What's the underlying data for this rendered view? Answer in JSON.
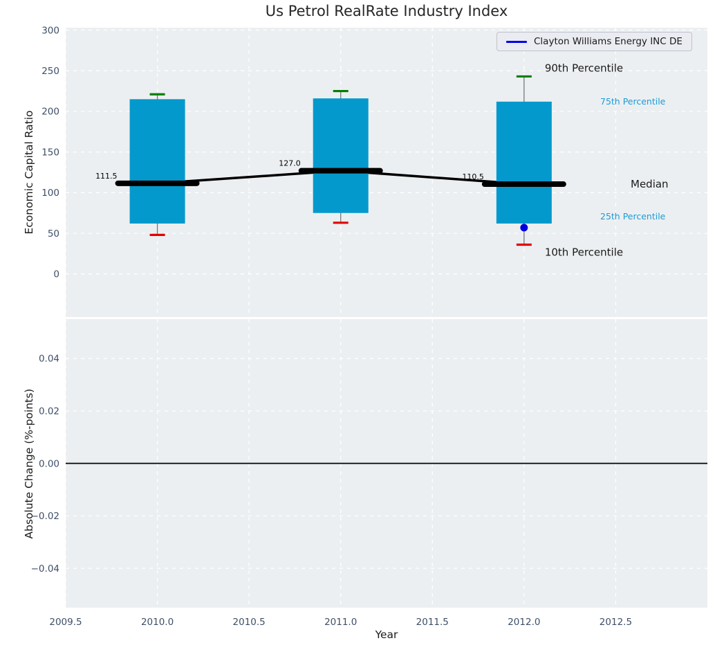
{
  "figure": {
    "title": "Us Petrol RealRate Industry Index",
    "xlabel": "Year",
    "background": "#ffffff",
    "axes_background": "#eceff1",
    "grid_color": "#ffffff",
    "tick_color": "#3e4f66",
    "text_color": "#1a1a1a"
  },
  "legend": {
    "label": "Clayton Williams Energy INC DE",
    "line_color": "#0000ec"
  },
  "chart_data": [
    {
      "type": "boxplot",
      "title": "Us Petrol RealRate Industry Index",
      "ylabel": "Economic Capital Ratio",
      "xlim": [
        2009.5,
        2013.0
      ],
      "ylim": [
        -53,
        303
      ],
      "grid": true,
      "legend_position": "upper right",
      "box_color": "#0499cd",
      "whisker_color": "#777777",
      "cap90_color": "#008000",
      "cap10_color": "#e30000",
      "median_color": "#000000",
      "point_color": "#0000dd",
      "annotation_minor_color": "#1b9cd8",
      "yticks": [
        {
          "v": 0,
          "label": "0"
        },
        {
          "v": 50,
          "label": "50"
        },
        {
          "v": 100,
          "label": "100"
        },
        {
          "v": 150,
          "label": "150"
        },
        {
          "v": 200,
          "label": "200"
        },
        {
          "v": 250,
          "label": "250"
        },
        {
          "v": 300,
          "label": "300"
        }
      ],
      "boxes": [
        {
          "x": 2010.0,
          "p10": 48,
          "p25": 62,
          "median": 111.5,
          "p75": 215,
          "p90": 221,
          "median_label": "111.5"
        },
        {
          "x": 2011.0,
          "p10": 63,
          "p25": 75,
          "median": 127.0,
          "p75": 216,
          "p90": 225,
          "median_label": "127.0"
        },
        {
          "x": 2012.0,
          "p10": 36,
          "p25": 62,
          "median": 110.5,
          "p75": 212,
          "p90": 243,
          "median_label": "110.5"
        }
      ],
      "series": [
        {
          "name": "Clayton Williams Energy INC DE",
          "color": "#0000dd",
          "points": [
            {
              "x": 2012.0,
              "y": 57
            }
          ]
        }
      ],
      "annotations": [
        {
          "text": "90th Percentile",
          "style": "major",
          "anchor": "p90"
        },
        {
          "text": "75th Percentile",
          "style": "minor",
          "anchor": "p75"
        },
        {
          "text": "Median",
          "style": "major",
          "anchor": "median"
        },
        {
          "text": "25th Percentile",
          "style": "minor",
          "anchor": "p25"
        },
        {
          "text": "10th Percentile",
          "style": "major",
          "anchor": "p10"
        }
      ]
    },
    {
      "type": "line",
      "ylabel": "Absolute Change (%-points)",
      "xlabel": "Year",
      "xlim": [
        2009.5,
        2013.0
      ],
      "ylim": [
        -0.055,
        0.055
      ],
      "grid": true,
      "zero_line": 0.0,
      "yticks": [
        {
          "v": 0.04,
          "label": "0.04"
        },
        {
          "v": 0.02,
          "label": "0.02"
        },
        {
          "v": 0.0,
          "label": "0.00"
        },
        {
          "v": -0.02,
          "label": "−0.02"
        },
        {
          "v": -0.04,
          "label": "−0.04"
        }
      ],
      "xticks": [
        {
          "v": 2009.5,
          "label": "2009.5"
        },
        {
          "v": 2010.0,
          "label": "2010.0"
        },
        {
          "v": 2010.5,
          "label": "2010.5"
        },
        {
          "v": 2011.0,
          "label": "2011.0"
        },
        {
          "v": 2011.5,
          "label": "2011.5"
        },
        {
          "v": 2012.0,
          "label": "2012.0"
        },
        {
          "v": 2012.5,
          "label": "2012.5"
        }
      ],
      "series": []
    }
  ]
}
